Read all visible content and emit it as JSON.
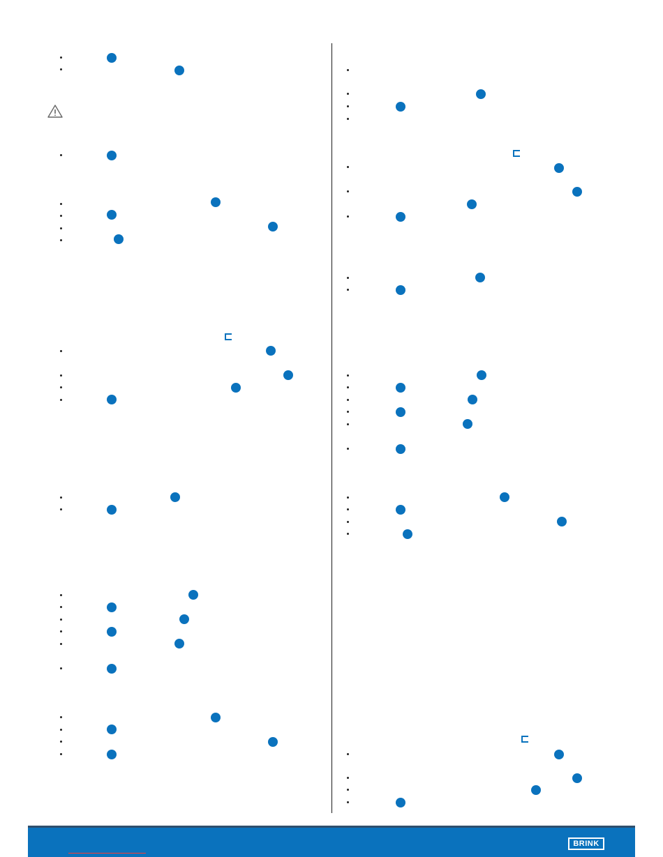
{
  "logo": {
    "text": "BRINK"
  },
  "icons": {
    "warning": "warning-triangle-icon",
    "reference_marker": "blue-circle-marker",
    "bracket": "bracket-icon"
  },
  "colors": {
    "accent": "#0a72bd",
    "footer_border": "#2f4f6e",
    "link_underline": "#ff3b30"
  }
}
